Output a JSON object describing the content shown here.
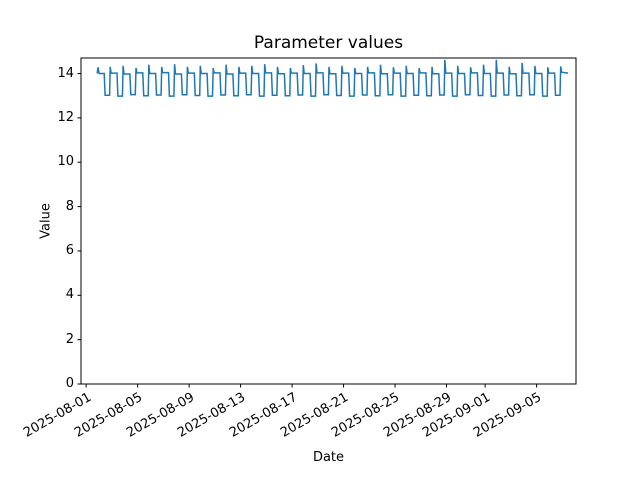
{
  "chart_data": {
    "type": "line",
    "title": "Parameter values",
    "xlabel": "Date",
    "ylabel": "Value",
    "grid": false,
    "legend": false,
    "background": "#ffffff",
    "axis_color": "#000000",
    "ylim": [
      0,
      14.7
    ],
    "yticks": [
      0,
      2,
      4,
      6,
      8,
      10,
      12,
      14
    ],
    "x_axis": {
      "unit": "days since 2025-08-01",
      "lim": [
        -0.4,
        38.06
      ],
      "tick_rotation_deg": 30,
      "ticks": [
        {
          "day": 0,
          "label": "2025-08-01"
        },
        {
          "day": 4,
          "label": "2025-08-05"
        },
        {
          "day": 8,
          "label": "2025-08-09"
        },
        {
          "day": 12,
          "label": "2025-08-13"
        },
        {
          "day": 16,
          "label": "2025-08-17"
        },
        {
          "day": 20,
          "label": "2025-08-21"
        },
        {
          "day": 24,
          "label": "2025-08-25"
        },
        {
          "day": 28,
          "label": "2025-08-29"
        },
        {
          "day": 31,
          "label": "2025-09-01"
        },
        {
          "day": 35,
          "label": "2025-09-05"
        }
      ]
    },
    "series": [
      {
        "name": "parameter-values",
        "color": "#1f77b4",
        "line_width": 1.5,
        "lead_in": [
          [
            0.85,
            14.0
          ],
          [
            0.93,
            14.28
          ],
          [
            1.0,
            14.0
          ]
        ],
        "cycle_offsets": {
          "plateau_end": 0.4,
          "trough_start": 0.47,
          "trough_end": 0.82,
          "spike_top": 0.87,
          "plateau_start": 0.94
        },
        "days": [
          {
            "date": "2025-08-02",
            "high": 14.0,
            "low": 13.02,
            "spike": 14.3
          },
          {
            "date": "2025-08-03",
            "high": 14.02,
            "low": 12.98,
            "spike": 14.35
          },
          {
            "date": "2025-08-04",
            "high": 13.98,
            "low": 13.05,
            "spike": 14.25
          },
          {
            "date": "2025-08-05",
            "high": 14.03,
            "low": 13.0,
            "spike": 14.4
          },
          {
            "date": "2025-08-06",
            "high": 14.0,
            "low": 13.03,
            "spike": 14.3
          },
          {
            "date": "2025-08-07",
            "high": 14.04,
            "low": 12.98,
            "spike": 14.42
          },
          {
            "date": "2025-08-08",
            "high": 13.98,
            "low": 13.04,
            "spike": 14.3
          },
          {
            "date": "2025-08-09",
            "high": 14.02,
            "low": 13.01,
            "spike": 14.35
          },
          {
            "date": "2025-08-10",
            "high": 14.0,
            "low": 12.98,
            "spike": 14.25
          },
          {
            "date": "2025-08-11",
            "high": 14.03,
            "low": 13.03,
            "spike": 14.4
          },
          {
            "date": "2025-08-12",
            "high": 13.98,
            "low": 13.0,
            "spike": 14.3
          },
          {
            "date": "2025-08-13",
            "high": 14.02,
            "low": 13.04,
            "spike": 14.35
          },
          {
            "date": "2025-08-14",
            "high": 14.0,
            "low": 12.98,
            "spike": 14.42
          },
          {
            "date": "2025-08-15",
            "high": 14.03,
            "low": 13.02,
            "spike": 14.3
          },
          {
            "date": "2025-08-16",
            "high": 13.99,
            "low": 13.0,
            "spike": 14.25
          },
          {
            "date": "2025-08-17",
            "high": 14.02,
            "low": 13.03,
            "spike": 14.38
          },
          {
            "date": "2025-08-18",
            "high": 14.0,
            "low": 12.98,
            "spike": 14.45
          },
          {
            "date": "2025-08-19",
            "high": 14.03,
            "low": 13.04,
            "spike": 14.3
          },
          {
            "date": "2025-08-20",
            "high": 13.99,
            "low": 13.01,
            "spike": 14.35
          },
          {
            "date": "2025-08-21",
            "high": 14.02,
            "low": 12.98,
            "spike": 14.25
          },
          {
            "date": "2025-08-22",
            "high": 14.0,
            "low": 13.03,
            "spike": 14.3
          },
          {
            "date": "2025-08-23",
            "high": 14.03,
            "low": 13.0,
            "spike": 14.4
          },
          {
            "date": "2025-08-24",
            "high": 13.99,
            "low": 13.04,
            "spike": 14.28
          },
          {
            "date": "2025-08-25",
            "high": 14.02,
            "low": 12.98,
            "spike": 14.35
          },
          {
            "date": "2025-08-26",
            "high": 14.0,
            "low": 13.02,
            "spike": 14.25
          },
          {
            "date": "2025-08-27",
            "high": 14.03,
            "low": 13.0,
            "spike": 14.3
          },
          {
            "date": "2025-08-28",
            "high": 13.99,
            "low": 13.03,
            "spike": 14.62
          },
          {
            "date": "2025-08-29",
            "high": 14.02,
            "low": 12.98,
            "spike": 14.35
          },
          {
            "date": "2025-08-30",
            "high": 14.0,
            "low": 13.04,
            "spike": 14.28
          },
          {
            "date": "2025-08-31",
            "high": 14.03,
            "low": 13.01,
            "spike": 14.4
          },
          {
            "date": "2025-09-01",
            "high": 14.0,
            "low": 12.98,
            "spike": 14.62
          },
          {
            "date": "2025-09-02",
            "high": 14.02,
            "low": 13.03,
            "spike": 14.3
          },
          {
            "date": "2025-09-03",
            "high": 13.99,
            "low": 13.0,
            "spike": 14.48
          },
          {
            "date": "2025-09-04",
            "high": 14.02,
            "low": 13.04,
            "spike": 14.35
          },
          {
            "date": "2025-09-05",
            "high": 14.0,
            "low": 12.98,
            "spike": 14.28
          },
          {
            "date": "2025-09-06",
            "high": 14.02,
            "low": 13.02,
            "spike": 14.32
          }
        ],
        "tail": [
          [
            36.94,
            14.06
          ],
          [
            37.45,
            14.02
          ]
        ]
      }
    ]
  }
}
